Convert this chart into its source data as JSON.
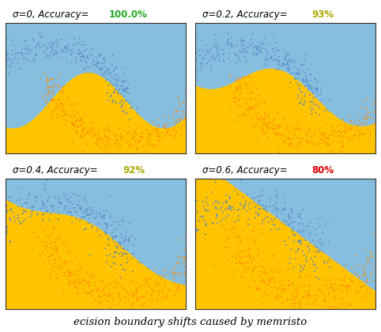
{
  "panels": [
    {
      "sigma": 0,
      "sigma_label": "0",
      "accuracy": "100.0%",
      "acc_color": "#22aa22"
    },
    {
      "sigma": 0.2,
      "sigma_label": "0.2",
      "accuracy": "93%",
      "acc_color": "#aaaa00"
    },
    {
      "sigma": 0.4,
      "sigma_label": "0.4",
      "accuracy": "92%",
      "acc_color": "#aaaa00"
    },
    {
      "sigma": 0.6,
      "sigma_label": "0.6",
      "accuracy": "80%",
      "acc_color": "#dd0000"
    }
  ],
  "background_color": "#ffffff",
  "blue_region": [
    0.529,
    0.749,
    0.878
  ],
  "orange_region": [
    1.0,
    0.765,
    0.0
  ],
  "blue_dot": "#5588cc",
  "orange_dot": "#ff8800",
  "n_points": 800,
  "figsize": [
    4.82,
    4.2
  ],
  "dpi": 100,
  "caption": "ecision boundary shifts caused by memristo"
}
